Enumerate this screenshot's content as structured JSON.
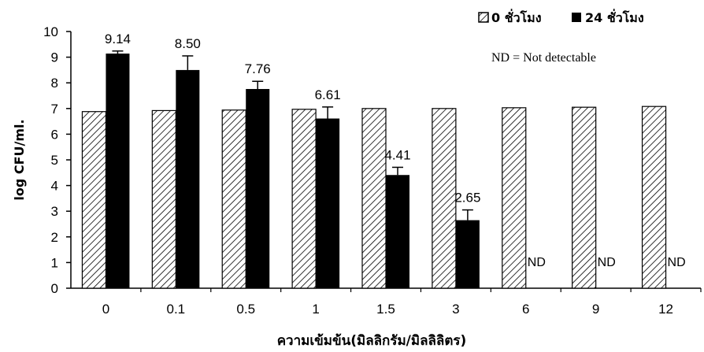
{
  "chart_data": {
    "type": "bar",
    "title": "",
    "xlabel": "ความเข้มข้น(มิลลิกรัม/มิลลิลิตร)",
    "ylabel": "log CFU/ml.",
    "ylim": [
      0,
      10
    ],
    "yticks": [
      "0",
      "1",
      "2",
      "3",
      "4",
      "5",
      "6",
      "7",
      "8",
      "9",
      "10"
    ],
    "categories": [
      "0",
      "0.1",
      "0.5",
      "1",
      "1.5",
      "3",
      "6",
      "9",
      "12"
    ],
    "series": [
      {
        "name": "0 ชั่วโมง",
        "values": [
          6.88,
          6.92,
          6.94,
          6.97,
          7.0,
          7.0,
          7.03,
          7.05,
          7.08
        ],
        "pattern": "hatched"
      },
      {
        "name": "24 ชั่วโมง",
        "values": [
          9.14,
          8.5,
          7.76,
          6.61,
          4.41,
          2.65,
          null,
          null,
          null
        ],
        "errors": [
          0.1,
          0.55,
          0.3,
          0.45,
          0.3,
          0.4,
          null,
          null,
          null
        ],
        "data_labels": [
          "9.14",
          "8.50",
          "7.76",
          "6.61",
          "4.41",
          "2.65",
          "ND",
          "ND",
          "ND"
        ],
        "color": "#000000"
      }
    ],
    "legend_position": "top-right",
    "annotation": "ND = Not detectable",
    "grid": false
  }
}
